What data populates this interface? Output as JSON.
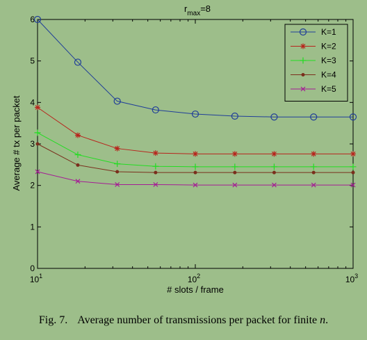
{
  "chart_data": {
    "type": "line",
    "title": "r",
    "title_sub": "max",
    "title_tail": "=8",
    "xlabel": "# slots / frame",
    "ylabel": "Average # tx per packet",
    "xscale": "log",
    "xlim": [
      10,
      1000
    ],
    "ylim": [
      0,
      6
    ],
    "yticks": [
      "0",
      "1",
      "2",
      "3",
      "4",
      "5",
      "6"
    ],
    "xticks": [
      {
        "base": "10",
        "exp": "1"
      },
      {
        "base": "10",
        "exp": "2"
      },
      {
        "base": "10",
        "exp": "3"
      }
    ],
    "legend_position": "top-right",
    "x": [
      10,
      18,
      32,
      56,
      100,
      178,
      316,
      562,
      1000
    ],
    "series": [
      {
        "name": "K=1",
        "color": "#1f3d99",
        "marker": "circle",
        "values": [
          6.0,
          4.97,
          4.03,
          3.82,
          3.72,
          3.67,
          3.65,
          3.65,
          3.65
        ]
      },
      {
        "name": "K=2",
        "color": "#b8241c",
        "marker": "star",
        "values": [
          3.88,
          3.21,
          2.89,
          2.78,
          2.76,
          2.76,
          2.76,
          2.76,
          2.76
        ]
      },
      {
        "name": "K=3",
        "color": "#22dd22",
        "marker": "plus",
        "values": [
          3.27,
          2.74,
          2.52,
          2.46,
          2.45,
          2.45,
          2.45,
          2.45,
          2.45
        ]
      },
      {
        "name": "K=4",
        "color": "#7a2e1c",
        "marker": "dot",
        "values": [
          3.0,
          2.49,
          2.33,
          2.31,
          2.31,
          2.31,
          2.31,
          2.31,
          2.31
        ]
      },
      {
        "name": "K=5",
        "color": "#a51c95",
        "marker": "cross",
        "values": [
          2.33,
          2.1,
          2.02,
          2.02,
          2.01,
          2.01,
          2.01,
          2.01,
          2.01
        ]
      }
    ]
  },
  "caption": {
    "number": "Fig. 7.",
    "text": "Average number of transmissions per packet for finite",
    "math": "n",
    "end": "."
  }
}
